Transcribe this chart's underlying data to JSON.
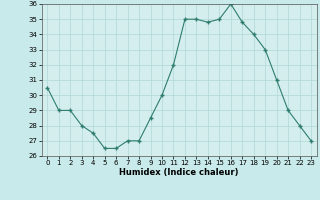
{
  "x": [
    0,
    1,
    2,
    3,
    4,
    5,
    6,
    7,
    8,
    9,
    10,
    11,
    12,
    13,
    14,
    15,
    16,
    17,
    18,
    19,
    20,
    21,
    22,
    23
  ],
  "y": [
    30.5,
    29,
    29,
    28,
    27.5,
    26.5,
    26.5,
    27,
    27,
    28.5,
    30,
    32,
    35,
    35,
    34.8,
    35,
    36,
    34.8,
    34,
    33,
    31,
    29,
    28,
    27
  ],
  "xlabel": "Humidex (Indice chaleur)",
  "ylim": [
    26,
    36
  ],
  "xlim": [
    -0.5,
    23.5
  ],
  "yticks": [
    26,
    27,
    28,
    29,
    30,
    31,
    32,
    33,
    34,
    35,
    36
  ],
  "xticks": [
    0,
    1,
    2,
    3,
    4,
    5,
    6,
    7,
    8,
    9,
    10,
    11,
    12,
    13,
    14,
    15,
    16,
    17,
    18,
    19,
    20,
    21,
    22,
    23
  ],
  "line_color": "#2e7d6e",
  "marker_color": "#2e7d6e",
  "bg_color": "#c8eaea",
  "grid_color": "#b0d8d8",
  "plot_bg": "#d4eeee"
}
